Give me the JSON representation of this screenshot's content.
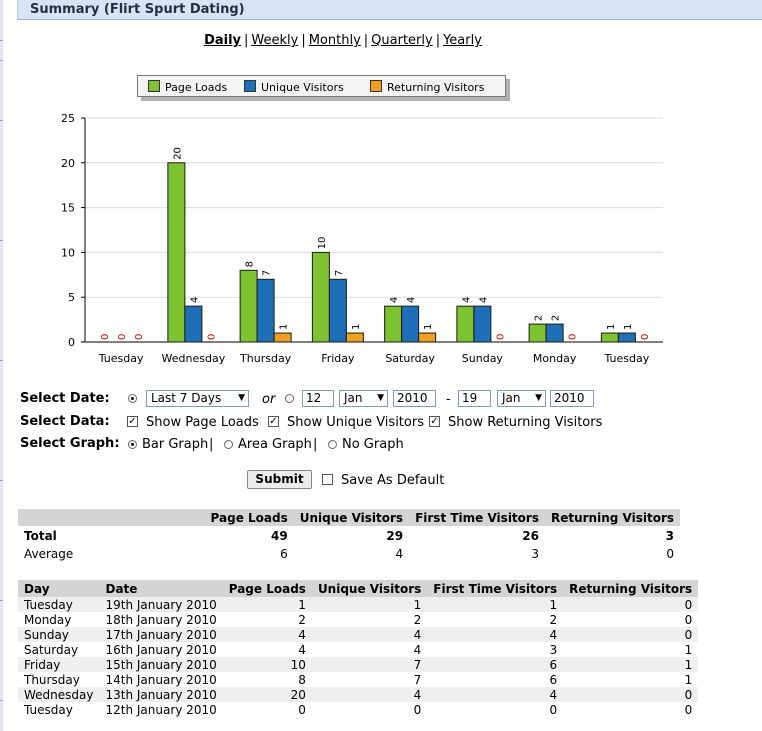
{
  "header": {
    "title": "Summary (Flirt Spurt Dating)"
  },
  "periods": [
    {
      "label": "Daily",
      "active": true
    },
    {
      "label": "Weekly",
      "active": false
    },
    {
      "label": "Monthly",
      "active": false
    },
    {
      "label": "Quarterly",
      "active": false
    },
    {
      "label": "Yearly",
      "active": false
    }
  ],
  "period_separator": "|",
  "legend": [
    {
      "label": "Page Loads",
      "color": "#7dc230"
    },
    {
      "label": "Unique Visitors",
      "color": "#1e6fb8"
    },
    {
      "label": "Returning Visitors",
      "color": "#f0a020"
    }
  ],
  "chart_data": {
    "type": "bar",
    "categories": [
      "Tuesday",
      "Wednesday",
      "Thursday",
      "Friday",
      "Saturday",
      "Sunday",
      "Monday",
      "Tuesday"
    ],
    "series": [
      {
        "name": "Page Loads",
        "color": "#7dc230",
        "values": [
          0,
          20,
          8,
          10,
          4,
          4,
          2,
          1
        ]
      },
      {
        "name": "Unique Visitors",
        "color": "#1e6fb8",
        "values": [
          0,
          4,
          7,
          7,
          4,
          4,
          2,
          1
        ]
      },
      {
        "name": "Returning Visitors",
        "color": "#f0a020",
        "values": [
          0,
          0,
          1,
          1,
          1,
          0,
          0,
          0
        ]
      }
    ],
    "y_ticks": [
      0,
      5,
      10,
      15,
      20,
      25
    ],
    "ylim": [
      0,
      25
    ],
    "grid": true,
    "title": "",
    "xlabel": "",
    "ylabel": ""
  },
  "form": {
    "select_date_label": "Select Date:",
    "range_preset": "Last 7 Days",
    "or_label": "or",
    "from_day": "12",
    "from_month": "Jan",
    "from_year": "2010",
    "dash": "-",
    "to_day": "19",
    "to_month": "Jan",
    "to_year": "2010",
    "select_data_label": "Select Data:",
    "show_page_loads": "Show Page Loads",
    "show_unique_visitors": "Show Unique Visitors",
    "show_returning_visitors": "Show Returning Visitors",
    "select_graph_label": "Select Graph:",
    "bar_graph": "Bar Graph",
    "area_graph": "Area Graph",
    "no_graph": "No Graph",
    "graph_sep": "|",
    "submit": "Submit",
    "save_default": "Save As Default",
    "check_mark": "✓",
    "select_arrow": "▼"
  },
  "summary_table": {
    "headers": [
      "",
      "Page Loads",
      "Unique Visitors",
      "First Time Visitors",
      "Returning Visitors"
    ],
    "rows": [
      [
        "Total",
        "49",
        "29",
        "26",
        "3"
      ],
      [
        "Average",
        "6",
        "4",
        "3",
        "0"
      ]
    ]
  },
  "detail_table": {
    "headers": [
      "Day",
      "Date",
      "Page Loads",
      "Unique Visitors",
      "First Time Visitors",
      "Returning Visitors"
    ],
    "rows": [
      [
        "Tuesday",
        "19th January 2010",
        "1",
        "1",
        "1",
        "0"
      ],
      [
        "Monday",
        "18th January 2010",
        "2",
        "2",
        "2",
        "0"
      ],
      [
        "Sunday",
        "17th January 2010",
        "4",
        "4",
        "4",
        "0"
      ],
      [
        "Saturday",
        "16th January 2010",
        "4",
        "4",
        "3",
        "1"
      ],
      [
        "Friday",
        "15th January 2010",
        "10",
        "7",
        "6",
        "1"
      ],
      [
        "Thursday",
        "14th January 2010",
        "8",
        "7",
        "6",
        "1"
      ],
      [
        "Wednesday",
        "13th January 2010",
        "20",
        "4",
        "4",
        "0"
      ],
      [
        "Tuesday",
        "12th January 2010",
        "0",
        "0",
        "0",
        "0"
      ]
    ]
  }
}
